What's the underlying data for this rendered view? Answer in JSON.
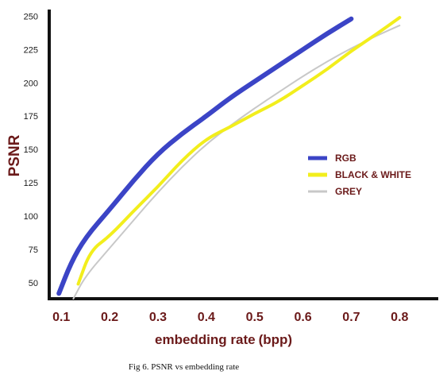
{
  "caption": "Fig 6. PSNR vs embedding rate",
  "chart_data": {
    "type": "line",
    "title": "",
    "xlabel": "embedding rate",
    "xlabel_unit": "(bpp)",
    "ylabel": "PSNR",
    "xlim": [
      0.075,
      0.88
    ],
    "ylim": [
      38,
      255
    ],
    "x_ticks": [
      "0.1",
      "0.2",
      "0.3",
      "0.4",
      "0.5",
      "0.6",
      "0.7",
      "0.8"
    ],
    "y_ticks": [
      "50",
      "75",
      "100",
      "125",
      "150",
      "175",
      "200",
      "225",
      "250"
    ],
    "grid": false,
    "legend_position": "right",
    "series": [
      {
        "name": "RGB",
        "color": "#3b44c6",
        "x": [
          0.095,
          0.12,
          0.15,
          0.2,
          0.25,
          0.3,
          0.35,
          0.4,
          0.45,
          0.5,
          0.55,
          0.6,
          0.65,
          0.7
        ],
        "y": [
          42,
          65,
          84,
          105,
          127,
          147,
          162,
          175,
          189,
          201,
          213,
          225,
          237,
          248
        ]
      },
      {
        "name": "BLACK & WHITE",
        "color": "#f2ee1c",
        "x": [
          0.135,
          0.16,
          0.2,
          0.25,
          0.3,
          0.35,
          0.4,
          0.45,
          0.5,
          0.55,
          0.6,
          0.65,
          0.7,
          0.75,
          0.8
        ],
        "y": [
          49,
          74,
          85,
          104,
          122,
          142,
          158,
          167,
          177,
          186,
          198,
          210,
          224,
          236,
          249
        ]
      },
      {
        "name": "GREY",
        "color": "#c8c8c8",
        "x": [
          0.125,
          0.15,
          0.2,
          0.25,
          0.3,
          0.35,
          0.4,
          0.45,
          0.5,
          0.55,
          0.6,
          0.65,
          0.7,
          0.75,
          0.8
        ],
        "y": [
          38,
          55,
          76,
          97,
          118,
          137,
          154,
          168,
          181,
          193,
          205,
          216,
          226,
          235,
          243
        ]
      }
    ]
  }
}
